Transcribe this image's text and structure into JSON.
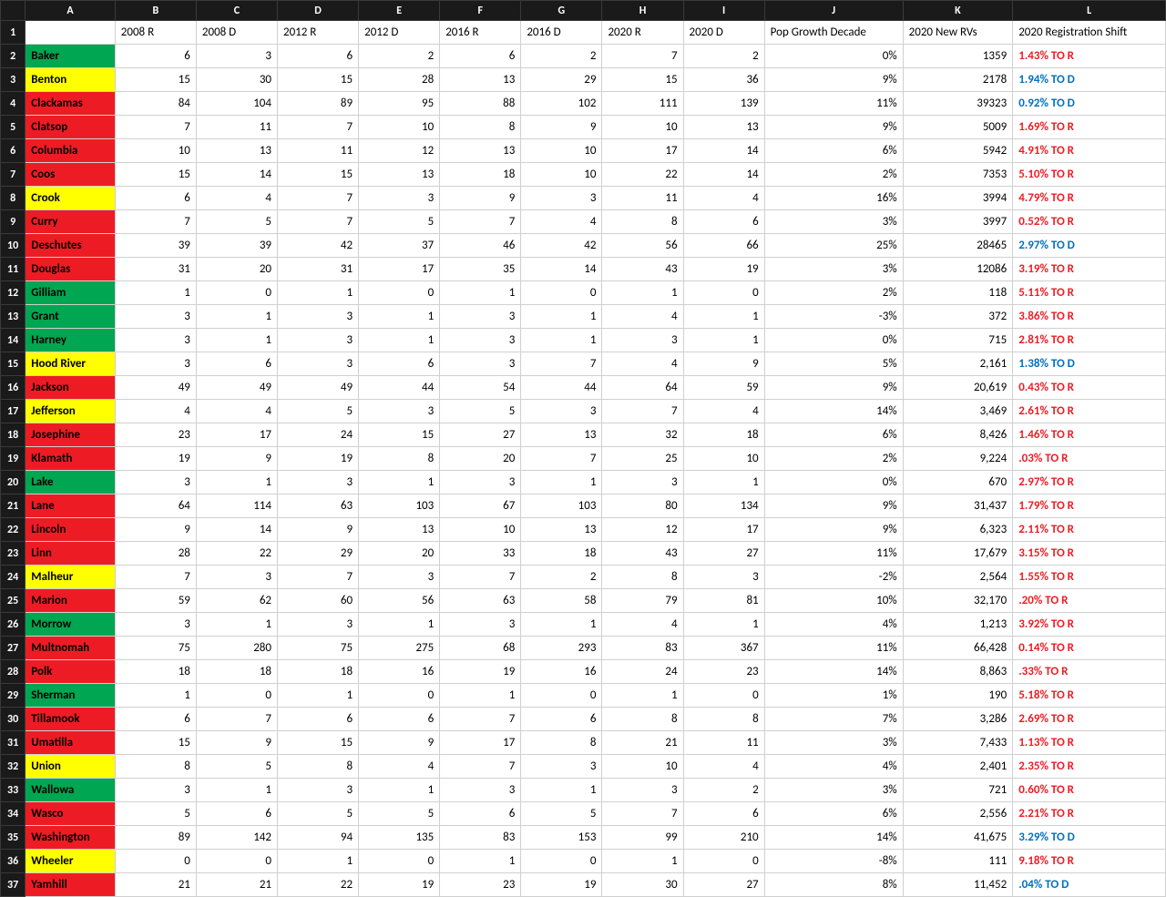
{
  "columns": [
    "A",
    "B",
    "C",
    "D",
    "E",
    "F",
    "G",
    "H",
    "I",
    "J",
    "K",
    "L"
  ],
  "headers": [
    "",
    "2008 R",
    "2008 D",
    "2012 R",
    "2012 D",
    "2016 R",
    "2016 D",
    "2020 R",
    "2020 D",
    "Pop Growth Decade",
    "2020 New RVs",
    "2020 Registration Shift"
  ],
  "colors": {
    "green": "#00a651",
    "yellow": "#ffff00",
    "red": "#ed1c24",
    "shift_r": "#ed1c24",
    "shift_d": "#0070c0",
    "header_bg": "#1a1a1a",
    "header_fg": "#ffffff",
    "border": "#d0d0d0"
  },
  "rows": [
    {
      "n": "2",
      "county": "Baker",
      "bg": "green",
      "v": [
        "6",
        "3",
        "6",
        "2",
        "6",
        "2",
        "7",
        "2",
        "0%",
        "1359"
      ],
      "shift": "1.43% TO R",
      "dir": "R"
    },
    {
      "n": "3",
      "county": "Benton",
      "bg": "yellow",
      "v": [
        "15",
        "30",
        "15",
        "28",
        "13",
        "29",
        "15",
        "36",
        "9%",
        "2178"
      ],
      "shift": "1.94% TO D",
      "dir": "D"
    },
    {
      "n": "4",
      "county": "Clackamas",
      "bg": "red",
      "v": [
        "84",
        "104",
        "89",
        "95",
        "88",
        "102",
        "111",
        "139",
        "11%",
        "39323"
      ],
      "shift": "0.92% TO D",
      "dir": "D"
    },
    {
      "n": "5",
      "county": "Clatsop",
      "bg": "red",
      "v": [
        "7",
        "11",
        "7",
        "10",
        "8",
        "9",
        "10",
        "13",
        "9%",
        "5009"
      ],
      "shift": "1.69% TO R",
      "dir": "R"
    },
    {
      "n": "6",
      "county": "Columbia",
      "bg": "red",
      "v": [
        "10",
        "13",
        "11",
        "12",
        "13",
        "10",
        "17",
        "14",
        "6%",
        "5942"
      ],
      "shift": "4.91% TO R",
      "dir": "R"
    },
    {
      "n": "7",
      "county": "Coos",
      "bg": "red",
      "v": [
        "15",
        "14",
        "15",
        "13",
        "18",
        "10",
        "22",
        "14",
        "2%",
        "7353"
      ],
      "shift": "5.10% TO R",
      "dir": "R"
    },
    {
      "n": "8",
      "county": "Crook",
      "bg": "yellow",
      "v": [
        "6",
        "4",
        "7",
        "3",
        "9",
        "3",
        "11",
        "4",
        "16%",
        "3994"
      ],
      "shift": "4.79% TO R",
      "dir": "R"
    },
    {
      "n": "9",
      "county": "Curry",
      "bg": "red",
      "v": [
        "7",
        "5",
        "7",
        "5",
        "7",
        "4",
        "8",
        "6",
        "3%",
        "3997"
      ],
      "shift": "0.52% TO R",
      "dir": "R"
    },
    {
      "n": "10",
      "county": "Deschutes",
      "bg": "red",
      "v": [
        "39",
        "39",
        "42",
        "37",
        "46",
        "42",
        "56",
        "66",
        "25%",
        "28465"
      ],
      "shift": "2.97% TO D",
      "dir": "D"
    },
    {
      "n": "11",
      "county": "Douglas",
      "bg": "red",
      "v": [
        "31",
        "20",
        "31",
        "17",
        "35",
        "14",
        "43",
        "19",
        "3%",
        "12086"
      ],
      "shift": "3.19% TO R",
      "dir": "R"
    },
    {
      "n": "12",
      "county": "Gilliam",
      "bg": "green",
      "v": [
        "1",
        "0",
        "1",
        "0",
        "1",
        "0",
        "1",
        "0",
        "2%",
        "118"
      ],
      "shift": "5.11% TO R",
      "dir": "R"
    },
    {
      "n": "13",
      "county": "Grant",
      "bg": "green",
      "v": [
        "3",
        "1",
        "3",
        "1",
        "3",
        "1",
        "4",
        "1",
        "-3%",
        "372"
      ],
      "shift": "3.86% TO R",
      "dir": "R"
    },
    {
      "n": "14",
      "county": "Harney",
      "bg": "green",
      "v": [
        "3",
        "1",
        "3",
        "1",
        "3",
        "1",
        "3",
        "1",
        "0%",
        "715"
      ],
      "shift": "2.81% TO R",
      "dir": "R"
    },
    {
      "n": "15",
      "county": "Hood River",
      "bg": "yellow",
      "v": [
        "3",
        "6",
        "3",
        "6",
        "3",
        "7",
        "4",
        "9",
        "5%",
        "2,161"
      ],
      "shift": "1.38% TO D",
      "dir": "D"
    },
    {
      "n": "16",
      "county": "Jackson",
      "bg": "red",
      "v": [
        "49",
        "49",
        "49",
        "44",
        "54",
        "44",
        "64",
        "59",
        "9%",
        "20,619"
      ],
      "shift": "0.43% TO R",
      "dir": "R"
    },
    {
      "n": "17",
      "county": "Jefferson",
      "bg": "yellow",
      "v": [
        "4",
        "4",
        "5",
        "3",
        "5",
        "3",
        "7",
        "4",
        "14%",
        "3,469"
      ],
      "shift": "2.61% TO R",
      "dir": "R"
    },
    {
      "n": "18",
      "county": "Josephine",
      "bg": "red",
      "v": [
        "23",
        "17",
        "24",
        "15",
        "27",
        "13",
        "32",
        "18",
        "6%",
        "8,426"
      ],
      "shift": "1.46% TO R",
      "dir": "R"
    },
    {
      "n": "19",
      "county": "Klamath",
      "bg": "red",
      "v": [
        "19",
        "9",
        "19",
        "8",
        "20",
        "7",
        "25",
        "10",
        "2%",
        "9,224"
      ],
      "shift": ".03% TO R",
      "dir": "R"
    },
    {
      "n": "20",
      "county": "Lake",
      "bg": "green",
      "v": [
        "3",
        "1",
        "3",
        "1",
        "3",
        "1",
        "3",
        "1",
        "0%",
        "670"
      ],
      "shift": "2.97% TO R",
      "dir": "R"
    },
    {
      "n": "21",
      "county": "Lane",
      "bg": "red",
      "v": [
        "64",
        "114",
        "63",
        "103",
        "67",
        "103",
        "80",
        "134",
        "9%",
        "31,437"
      ],
      "shift": "1.79% TO R",
      "dir": "R"
    },
    {
      "n": "22",
      "county": "Lincoln",
      "bg": "red",
      "v": [
        "9",
        "14",
        "9",
        "13",
        "10",
        "13",
        "12",
        "17",
        "9%",
        "6,323"
      ],
      "shift": "2.11% TO R",
      "dir": "R"
    },
    {
      "n": "23",
      "county": "Linn",
      "bg": "red",
      "v": [
        "28",
        "22",
        "29",
        "20",
        "33",
        "18",
        "43",
        "27",
        "11%",
        "17,679"
      ],
      "shift": "3.15% TO R",
      "dir": "R"
    },
    {
      "n": "24",
      "county": "Malheur",
      "bg": "yellow",
      "v": [
        "7",
        "3",
        "7",
        "3",
        "7",
        "2",
        "8",
        "3",
        "-2%",
        "2,564"
      ],
      "shift": "1.55% TO R",
      "dir": "R"
    },
    {
      "n": "25",
      "county": "Marion",
      "bg": "red",
      "v": [
        "59",
        "62",
        "60",
        "56",
        "63",
        "58",
        "79",
        "81",
        "10%",
        "32,170"
      ],
      "shift": ".20% TO R",
      "dir": "R"
    },
    {
      "n": "26",
      "county": "Morrow",
      "bg": "green",
      "v": [
        "3",
        "1",
        "3",
        "1",
        "3",
        "1",
        "4",
        "1",
        "4%",
        "1,213"
      ],
      "shift": "3.92% TO R",
      "dir": "R"
    },
    {
      "n": "27",
      "county": "Multnomah",
      "bg": "red",
      "v": [
        "75",
        "280",
        "75",
        "275",
        "68",
        "293",
        "83",
        "367",
        "11%",
        "66,428"
      ],
      "shift": "0.14% TO R",
      "dir": "R"
    },
    {
      "n": "28",
      "county": "Polk",
      "bg": "red",
      "v": [
        "18",
        "18",
        "18",
        "16",
        "19",
        "16",
        "24",
        "23",
        "14%",
        "8,863"
      ],
      "shift": ".33% TO R",
      "dir": "R"
    },
    {
      "n": "29",
      "county": "Sherman",
      "bg": "green",
      "v": [
        "1",
        "0",
        "1",
        "0",
        "1",
        "0",
        "1",
        "0",
        "1%",
        "190"
      ],
      "shift": "5.18% TO R",
      "dir": "R"
    },
    {
      "n": "30",
      "county": "Tillamook",
      "bg": "red",
      "v": [
        "6",
        "7",
        "6",
        "6",
        "7",
        "6",
        "8",
        "8",
        "7%",
        "3,286"
      ],
      "shift": "2.69% TO R",
      "dir": "R"
    },
    {
      "n": "31",
      "county": "Umatilla",
      "bg": "red",
      "v": [
        "15",
        "9",
        "15",
        "9",
        "17",
        "8",
        "21",
        "11",
        "3%",
        "7,433"
      ],
      "shift": "1.13% TO R",
      "dir": "R"
    },
    {
      "n": "32",
      "county": "Union",
      "bg": "yellow",
      "v": [
        "8",
        "5",
        "8",
        "4",
        "7",
        "3",
        "10",
        "4",
        "4%",
        "2,401"
      ],
      "shift": "2.35% TO R",
      "dir": "R"
    },
    {
      "n": "33",
      "county": "Wallowa",
      "bg": "green",
      "v": [
        "3",
        "1",
        "3",
        "1",
        "3",
        "1",
        "3",
        "2",
        "3%",
        "721"
      ],
      "shift": "0.60% TO R",
      "dir": "R"
    },
    {
      "n": "34",
      "county": "Wasco",
      "bg": "red",
      "v": [
        "5",
        "6",
        "5",
        "5",
        "6",
        "5",
        "7",
        "6",
        "6%",
        "2,556"
      ],
      "shift": "2.21% TO R",
      "dir": "R"
    },
    {
      "n": "35",
      "county": "Washington",
      "bg": "red",
      "v": [
        "89",
        "142",
        "94",
        "135",
        "83",
        "153",
        "99",
        "210",
        "14%",
        "41,675"
      ],
      "shift": "3.29% TO D",
      "dir": "D"
    },
    {
      "n": "36",
      "county": "Wheeler",
      "bg": "yellow",
      "v": [
        "0",
        "0",
        "1",
        "0",
        "1",
        "0",
        "1",
        "0",
        "-8%",
        "111"
      ],
      "shift": "9.18% TO R",
      "dir": "R"
    },
    {
      "n": "37",
      "county": "Yamhill",
      "bg": "red",
      "v": [
        "21",
        "21",
        "22",
        "19",
        "23",
        "19",
        "30",
        "27",
        "8%",
        "11,452"
      ],
      "shift": ".04% TO D",
      "dir": "D"
    }
  ]
}
